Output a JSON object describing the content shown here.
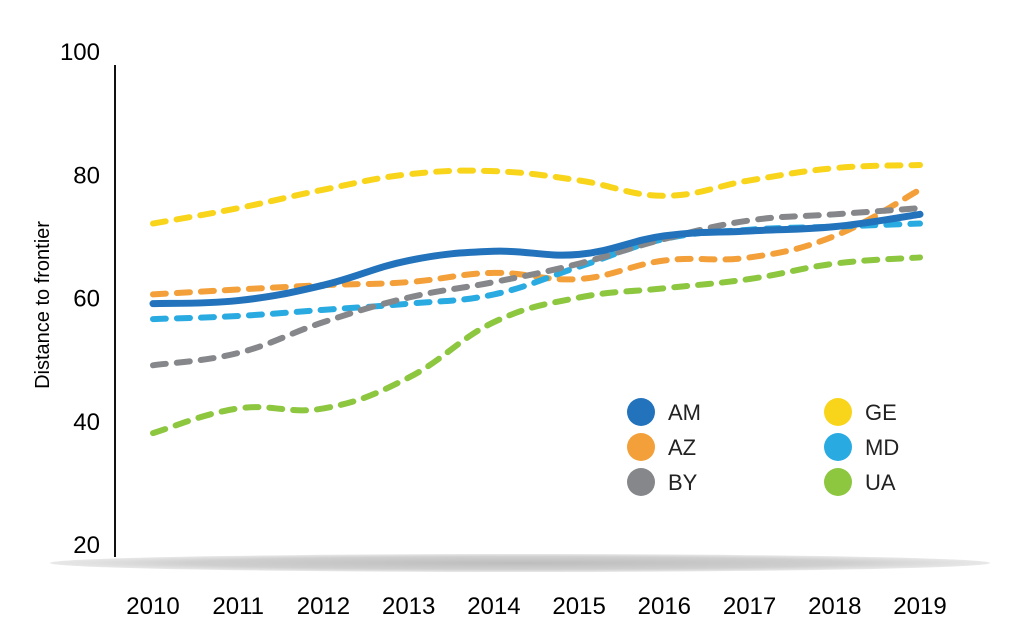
{
  "chart_data": {
    "type": "line",
    "title": "",
    "xlabel": "",
    "ylabel": "Distance to frontier",
    "categories": [
      "2010",
      "2011",
      "2012",
      "2013",
      "2014",
      "2015",
      "2016",
      "2017",
      "2018",
      "2019"
    ],
    "yticks": [
      "20",
      "40",
      "60",
      "80",
      "100"
    ],
    "ylim": [
      20,
      100
    ],
    "legend_placement": "lower-right",
    "grid": false,
    "series": [
      {
        "name": "AM",
        "color": "#2273bb",
        "dashed": false,
        "values": [
          59,
          59.5,
          62,
          66,
          67.5,
          67,
          70,
          70.8,
          71.5,
          73.5
        ]
      },
      {
        "name": "GE",
        "color": "#f8d51b",
        "dashed": true,
        "values": [
          72,
          74.5,
          77.5,
          80,
          80.5,
          79,
          76.5,
          79,
          81,
          81.5
        ]
      },
      {
        "name": "AZ",
        "color": "#f3a03a",
        "dashed": true,
        "values": [
          60.5,
          61.3,
          62,
          62.5,
          64,
          63,
          66,
          66.5,
          70,
          77.5
        ]
      },
      {
        "name": "MD",
        "color": "#29abe2",
        "dashed": true,
        "values": [
          56.5,
          57,
          58,
          59,
          60.5,
          65,
          69.5,
          71,
          71.5,
          72
        ]
      },
      {
        "name": "BY",
        "color": "#86878a",
        "dashed": true,
        "values": [
          49,
          51,
          56,
          60,
          62.5,
          65.5,
          69.5,
          72.5,
          73.5,
          74.5
        ]
      },
      {
        "name": "UA",
        "color": "#8dc63f",
        "dashed": true,
        "values": [
          38,
          42,
          42,
          47,
          56,
          60,
          61.5,
          63,
          65.5,
          66.5
        ]
      }
    ]
  }
}
